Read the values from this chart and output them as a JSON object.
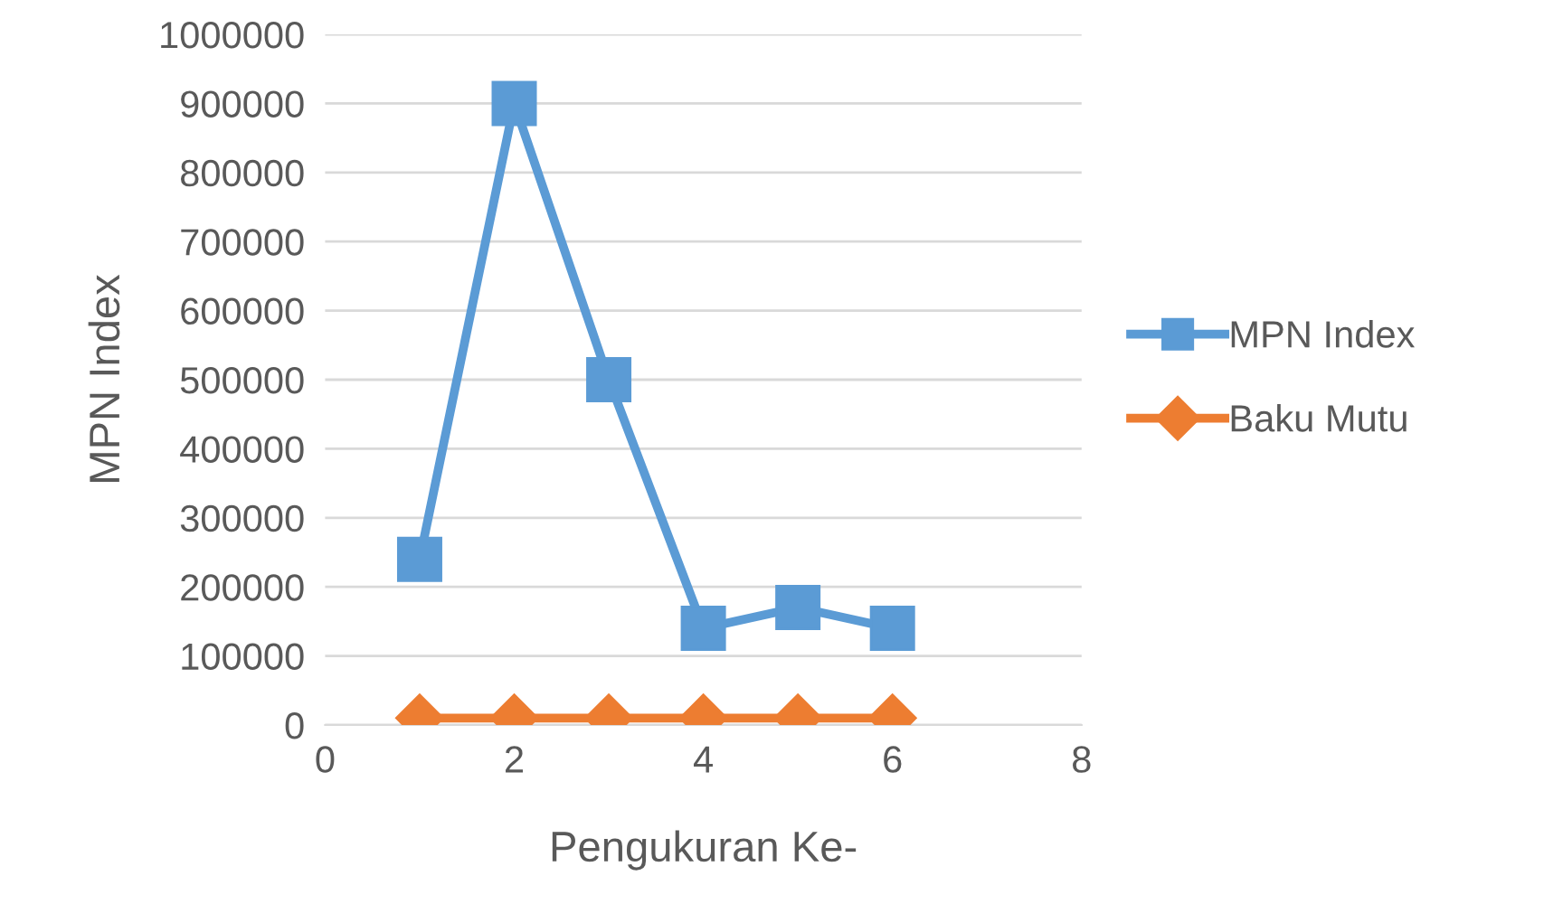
{
  "chart_data": {
    "type": "line",
    "xlabel": "Pengukuran Ke-",
    "ylabel": "MPN Index",
    "x": [
      1,
      2,
      3,
      4,
      5,
      6
    ],
    "series": [
      {
        "name": "MPN Index",
        "color": "#5b9bd5",
        "values": [
          240000,
          900000,
          500000,
          140000,
          170000,
          140000
        ],
        "marker": "square"
      },
      {
        "name": "Baku Mutu",
        "color": "#ed7d31",
        "values": [
          10000,
          10000,
          10000,
          10000,
          10000,
          10000
        ],
        "marker": "diamond"
      }
    ],
    "xlim": [
      0,
      8
    ],
    "xticks": [
      0,
      2,
      4,
      6,
      8
    ],
    "ylim": [
      0,
      1000000
    ],
    "yticks": [
      0,
      100000,
      200000,
      300000,
      400000,
      500000,
      600000,
      700000,
      800000,
      900000,
      1000000
    ],
    "grid": "y",
    "legend": "right",
    "line_style": "solid"
  }
}
